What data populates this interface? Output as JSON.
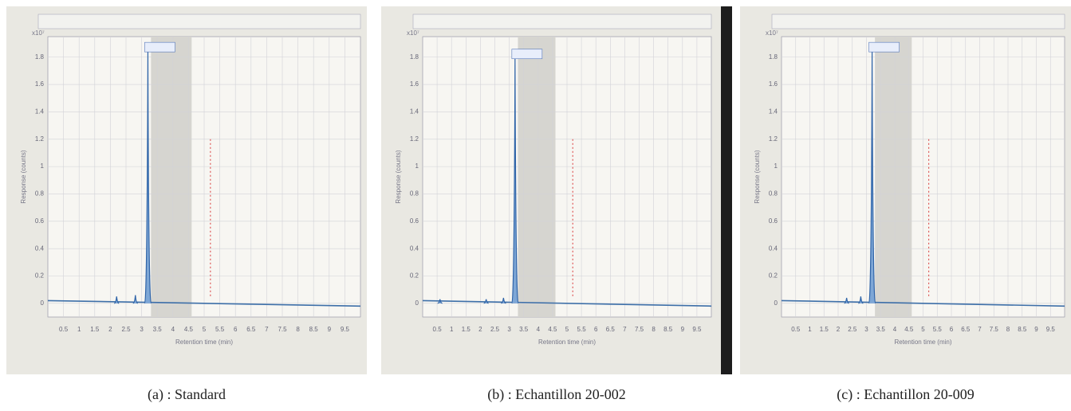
{
  "figure": {
    "panels": [
      {
        "caption": "(a) : Standard",
        "scale_label": "x10⁷",
        "ylabel": "Response (counts)",
        "xlabel": "Retention time (min)",
        "xlim": [
          0,
          10
        ],
        "ylim": [
          -0.1,
          1.95
        ],
        "xticks": [
          0.5,
          1,
          1.5,
          2,
          2.5,
          3,
          3.5,
          4,
          4.5,
          5,
          5.5,
          6,
          6.5,
          7,
          7.5,
          8,
          8.5,
          9,
          9.5
        ],
        "yticks": [
          0,
          0.2,
          0.4,
          0.6,
          0.8,
          1,
          1.2,
          1.4,
          1.6,
          1.8
        ],
        "peaks": {
          "x": [
            2.2,
            2.8,
            3.2
          ],
          "values": [
            0.05,
            0.06,
            1.85
          ]
        }
      },
      {
        "caption": "(b) :  Echantillon 20-002",
        "scale_label": "x10⁷",
        "ylabel": "Response (counts)",
        "xlabel": "Retention time (min)",
        "xlim": [
          0,
          10
        ],
        "ylim": [
          -0.1,
          1.95
        ],
        "xticks": [
          0.5,
          1,
          1.5,
          2,
          2.5,
          3,
          3.5,
          4,
          4.5,
          5,
          5.5,
          6,
          6.5,
          7,
          7.5,
          8,
          8.5,
          9,
          9.5
        ],
        "yticks": [
          0,
          0.2,
          0.4,
          0.6,
          0.8,
          1,
          1.2,
          1.4,
          1.6,
          1.8
        ],
        "peaks": {
          "x": [
            0.6,
            2.2,
            2.8,
            3.2
          ],
          "values": [
            0.03,
            0.03,
            0.04,
            1.8
          ]
        }
      },
      {
        "caption": "(c) : Echantillon 20-009",
        "scale_label": "x10⁷",
        "ylabel": "Response (counts)",
        "xlabel": "Retention time (min)",
        "xlim": [
          0,
          10
        ],
        "ylim": [
          -0.1,
          1.95
        ],
        "xticks": [
          0.5,
          1,
          1.5,
          2,
          2.5,
          3,
          3.5,
          4,
          4.5,
          5,
          5.5,
          6,
          6.5,
          7,
          7.5,
          8,
          8.5,
          9,
          9.5
        ],
        "yticks": [
          0,
          0.2,
          0.4,
          0.6,
          0.8,
          1,
          1.2,
          1.4,
          1.6,
          1.8
        ],
        "peaks": {
          "x": [
            2.3,
            2.8,
            3.2
          ],
          "values": [
            0.04,
            0.05,
            1.85
          ]
        }
      }
    ]
  }
}
